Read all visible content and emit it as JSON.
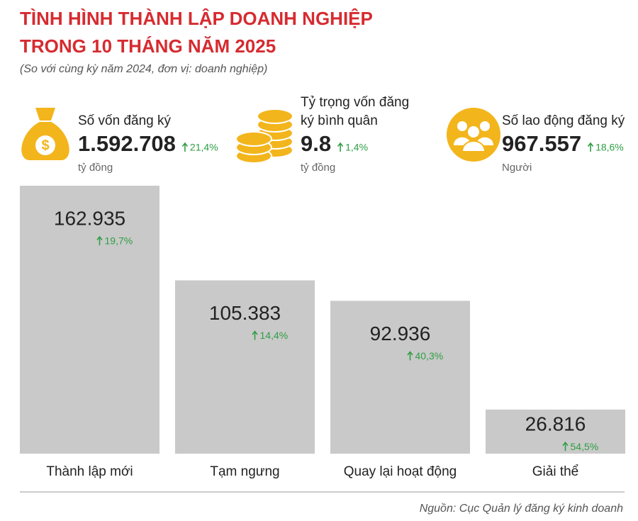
{
  "header": {
    "title_lines": [
      "TÌNH HÌNH THÀNH LẬP DOANH NGHIỆP",
      "TRONG 10 THÁNG NĂM 2025"
    ],
    "subtitle": "(So với cùng kỳ năm 2024, đơn vị: doanh nghiệp)"
  },
  "kpis": [
    {
      "label_lines": [
        "Số vốn đăng ký"
      ],
      "value": "1.592.708",
      "change": "21,4%",
      "unit": "tỷ đồng"
    },
    {
      "label_lines": [
        "Tỷ trọng vốn đăng",
        "ký bình quân"
      ],
      "value": "9.8",
      "change": "1,4%",
      "unit": "tỷ đồng"
    },
    {
      "label_lines": [
        "Số lao động đăng ký"
      ],
      "value": "967.557",
      "change": "18,6%",
      "unit": "Người"
    }
  ],
  "chart_data": {
    "type": "bar",
    "categories": [
      "Thành lập mới",
      "Tạm ngưng",
      "Quay lại hoạt động",
      "Giải thể"
    ],
    "values": [
      162935,
      105383,
      92936,
      26816
    ],
    "value_labels": [
      "162.935",
      "105.383",
      "92.936",
      "26.816"
    ],
    "change_labels": [
      "19,7%",
      "14,4%",
      "40,3%",
      "54,5%"
    ],
    "color": "#c9c9c9",
    "change_color": "#2f9e44"
  },
  "source": "Nguồn: Cục Quản lý đăng ký kinh doanh"
}
